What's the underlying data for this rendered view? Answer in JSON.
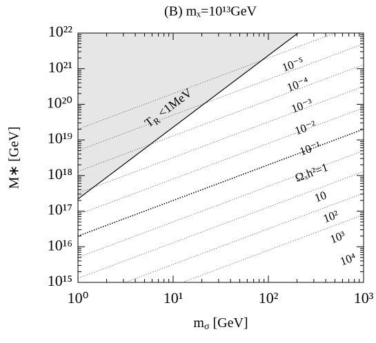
{
  "chart_data": {
    "type": "line",
    "title": "(B) mₓ=10¹³GeV",
    "xlabel": [
      "m",
      "σ",
      " [GeV]"
    ],
    "ylabel": "M∗ [GeV]",
    "xlog": true,
    "ylog": true,
    "xlim": [
      1,
      1000
    ],
    "ylim": [
      1000000000000000.0,
      1e+22
    ],
    "xticks": [
      {
        "value": 1,
        "label": "10⁰"
      },
      {
        "value": 10,
        "label": "10¹"
      },
      {
        "value": 100,
        "label": "10²"
      },
      {
        "value": 1000,
        "label": "10³"
      }
    ],
    "yticks": [
      {
        "value": 1000000000000000.0,
        "label": "10¹⁵"
      },
      {
        "value": 1e+16,
        "label": "10¹⁶"
      },
      {
        "value": 1e+17,
        "label": "10¹⁷"
      },
      {
        "value": 1e+18,
        "label": "10¹⁸"
      },
      {
        "value": 1e+19,
        "label": "10¹⁹"
      },
      {
        "value": 1e+20,
        "label": "10²⁰"
      },
      {
        "value": 1e+21,
        "label": "10²¹"
      },
      {
        "value": 1e+22,
        "label": "10²²"
      }
    ],
    "x": [
      1,
      1000
    ],
    "series": [
      {
        "name": "10⁻⁵",
        "color": "#666",
        "values": [
          2e+19,
          2e+22
        ]
      },
      {
        "name": "10⁻⁴",
        "color": "#666",
        "values": [
          5e+18,
          5e+21
        ]
      },
      {
        "name": "10⁻³",
        "color": "#666",
        "values": [
          1.3e+18,
          1.3e+21
        ]
      },
      {
        "name": "10⁻²",
        "color": "#666",
        "values": [
          3.2e+17,
          3.2e+20
        ]
      },
      {
        "name": "10⁻¹",
        "color": "#666",
        "values": [
          8e+16,
          8e+19
        ]
      },
      {
        "name": "Ωₓh²=1",
        "color": "#000",
        "values": [
          2e+16,
          2e+19
        ]
      },
      {
        "name": "10",
        "color": "#666",
        "values": [
          5000000000000000.0,
          5e+18
        ]
      },
      {
        "name": "10²",
        "color": "#666",
        "values": [
          1300000000000000.0,
          1.3e+18
        ]
      },
      {
        "name": "10³",
        "color": "#666",
        "values": [
          320000000000000.0,
          3.2e+17
        ]
      },
      {
        "name": "10⁴",
        "color": "#666",
        "values": [
          80000000000000.0,
          8e+16
        ]
      }
    ],
    "boundary": {
      "label": [
        "T",
        "R",
        " <1MeV"
      ],
      "x": [
        1,
        205
      ],
      "values": [
        2.2e+17,
        1e+22
      ],
      "color": "#000",
      "fill": "#e6e6e6"
    }
  }
}
